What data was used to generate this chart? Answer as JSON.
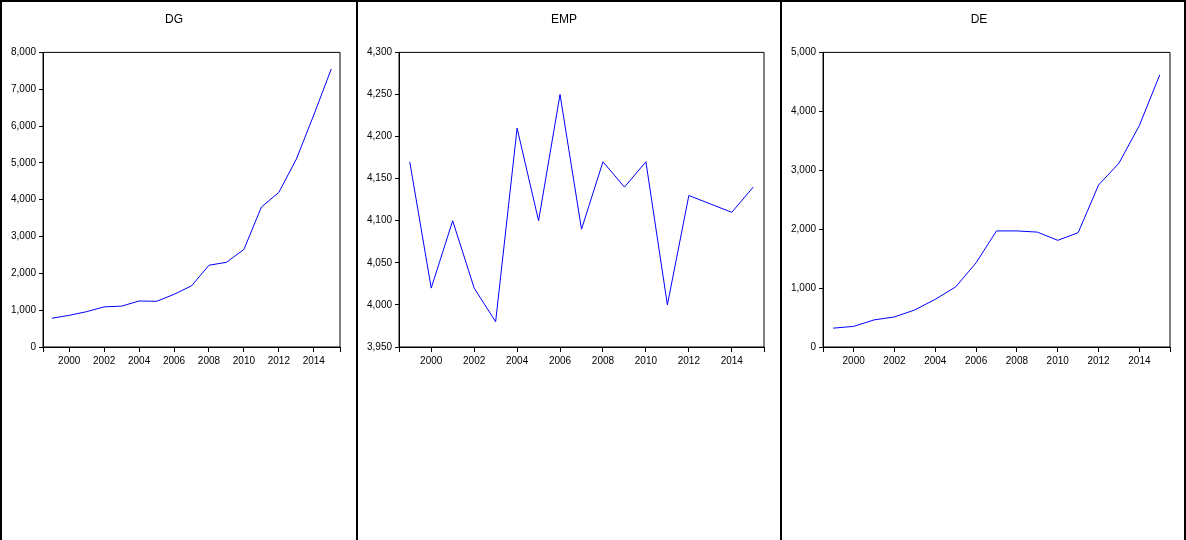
{
  "chart_data": [
    {
      "type": "line",
      "title": "DG",
      "x": [
        1999,
        2000,
        2001,
        2002,
        2003,
        2004,
        2005,
        2006,
        2007,
        2008,
        2009,
        2010,
        2011,
        2012,
        2013,
        2014,
        2015
      ],
      "xlim": [
        1998.5,
        2015.5
      ],
      "xticks": [
        {
          "value": 1998.5,
          "label": null
        },
        {
          "value": 2000,
          "label": "2000"
        },
        {
          "value": 2002,
          "label": "2002"
        },
        {
          "value": 2004,
          "label": "2004"
        },
        {
          "value": 2006,
          "label": "2006"
        },
        {
          "value": 2008,
          "label": "2008"
        },
        {
          "value": 2010,
          "label": "2010"
        },
        {
          "value": 2012,
          "label": "2012"
        },
        {
          "value": 2014,
          "label": "2014"
        },
        {
          "value": 2015.5,
          "label": null
        }
      ],
      "ylim": [
        0,
        8000
      ],
      "yticks": [
        0,
        {
          "value": 1000,
          "label": "1,000"
        },
        {
          "value": 2000,
          "label": "2,000"
        },
        {
          "value": 3000,
          "label": "3,000"
        },
        {
          "value": 4000,
          "label": "4,000"
        },
        {
          "value": 5000,
          "label": "5,000"
        },
        {
          "value": 6000,
          "label": "6,000"
        },
        {
          "value": 7000,
          "label": "7,000"
        },
        {
          "value": 8000,
          "label": "8,000"
        }
      ],
      "grid": false,
      "legend": false,
      "marker": "none",
      "series": [
        {
          "color": "#0000ff",
          "values": [
            780,
            860,
            960,
            1090,
            1110,
            1250,
            1240,
            1430,
            1660,
            2220,
            2300,
            2650,
            3800,
            4200,
            5100,
            6300,
            7550
          ]
        }
      ]
    },
    {
      "type": "line",
      "title": "EMP",
      "x": [
        1999,
        2000,
        2001,
        2002,
        2003,
        2004,
        2005,
        2006,
        2007,
        2008,
        2009,
        2010,
        2011,
        2012,
        2013,
        2014,
        2015
      ],
      "xlim": [
        1998.5,
        2015.5
      ],
      "xticks": [
        {
          "value": 1998.5,
          "label": null
        },
        {
          "value": 2000,
          "label": "2000"
        },
        {
          "value": 2002,
          "label": "2002"
        },
        {
          "value": 2004,
          "label": "2004"
        },
        {
          "value": 2006,
          "label": "2006"
        },
        {
          "value": 2008,
          "label": "2008"
        },
        {
          "value": 2010,
          "label": "2010"
        },
        {
          "value": 2012,
          "label": "2012"
        },
        {
          "value": 2014,
          "label": "2014"
        },
        {
          "value": 2015.5,
          "label": null
        }
      ],
      "ylim": [
        3950,
        4300
      ],
      "yticks": [
        {
          "value": 3950,
          "label": "3,950"
        },
        {
          "value": 4000,
          "label": "4,000"
        },
        {
          "value": 4050,
          "label": "4,050"
        },
        {
          "value": 4100,
          "label": "4,100"
        },
        {
          "value": 4150,
          "label": "4,150"
        },
        {
          "value": 4200,
          "label": "4,200"
        },
        {
          "value": 4250,
          "label": "4,250"
        },
        {
          "value": 4300,
          "label": "4,300"
        }
      ],
      "grid": false,
      "legend": false,
      "marker": "none",
      "series": [
        {
          "color": "#0000ff",
          "values": [
            4170,
            4020,
            4100,
            4020,
            3980,
            4210,
            4100,
            4250,
            4090,
            4170,
            4140,
            4170,
            4000,
            4130,
            4120,
            4110,
            4140
          ]
        }
      ]
    },
    {
      "type": "line",
      "title": "DE",
      "x": [
        1999,
        2000,
        2001,
        2002,
        2003,
        2004,
        2005,
        2006,
        2007,
        2008,
        2009,
        2010,
        2011,
        2012,
        2013,
        2014,
        2015
      ],
      "xlim": [
        1998.5,
        2015.5
      ],
      "xticks": [
        {
          "value": 1998.5,
          "label": null
        },
        {
          "value": 2000,
          "label": "2000"
        },
        {
          "value": 2002,
          "label": "2002"
        },
        {
          "value": 2004,
          "label": "2004"
        },
        {
          "value": 2006,
          "label": "2006"
        },
        {
          "value": 2008,
          "label": "2008"
        },
        {
          "value": 2010,
          "label": "2010"
        },
        {
          "value": 2012,
          "label": "2012"
        },
        {
          "value": 2014,
          "label": "2014"
        },
        {
          "value": 2015.5,
          "label": null
        }
      ],
      "ylim": [
        0,
        5000
      ],
      "yticks": [
        0,
        {
          "value": 1000,
          "label": "1,000"
        },
        {
          "value": 2000,
          "label": "2,000"
        },
        {
          "value": 3000,
          "label": "3,000"
        },
        {
          "value": 4000,
          "label": "4,000"
        },
        {
          "value": 5000,
          "label": "5,000"
        }
      ],
      "grid": false,
      "legend": false,
      "marker": "none",
      "series": [
        {
          "color": "#0000ff",
          "values": [
            320,
            350,
            460,
            510,
            630,
            810,
            1020,
            1430,
            1970,
            1970,
            1950,
            1810,
            1940,
            2750,
            3120,
            3760,
            4620
          ]
        }
      ]
    }
  ]
}
